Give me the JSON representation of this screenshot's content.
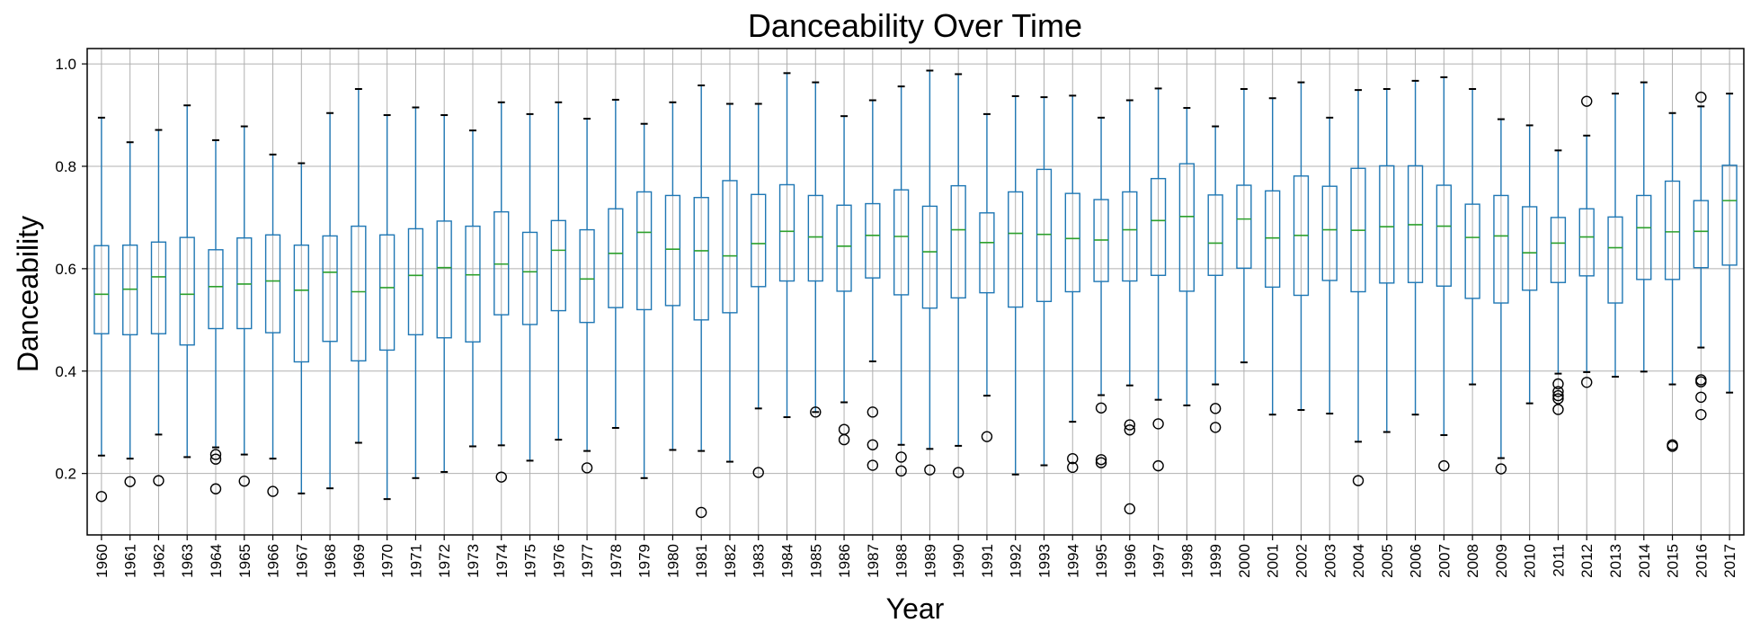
{
  "chart_data": {
    "type": "boxplot",
    "title": "Danceability Over Time",
    "xlabel": "Year",
    "ylabel": "Danceability",
    "ylim": [
      0.08,
      1.03
    ],
    "yticks": [
      0.2,
      0.4,
      0.6,
      0.8,
      1.0
    ],
    "ytick_labels": [
      "0.2",
      "0.4",
      "0.6",
      "0.8",
      "1.0"
    ],
    "grid": true,
    "legend": "none",
    "colors": {
      "box": "#1f77b4",
      "median": "#2ca02c",
      "grid": "#b0b0b0",
      "axis": "#000000",
      "flier": "#000000"
    },
    "categories": [
      "1960",
      "1961",
      "1962",
      "1963",
      "1964",
      "1965",
      "1966",
      "1967",
      "1968",
      "1969",
      "1970",
      "1971",
      "1972",
      "1973",
      "1974",
      "1975",
      "1976",
      "1977",
      "1978",
      "1979",
      "1980",
      "1981",
      "1982",
      "1983",
      "1984",
      "1985",
      "1986",
      "1987",
      "1988",
      "1989",
      "1990",
      "1991",
      "1992",
      "1993",
      "1994",
      "1995",
      "1996",
      "1997",
      "1998",
      "1999",
      "2000",
      "2001",
      "2002",
      "2003",
      "2004",
      "2005",
      "2006",
      "2007",
      "2008",
      "2009",
      "2010",
      "2011",
      "2012",
      "2013",
      "2014",
      "2015",
      "2016",
      "2017"
    ],
    "boxes": [
      {
        "whislo": 0.235,
        "q1": 0.473,
        "med": 0.55,
        "q3": 0.645,
        "whishi": 0.895,
        "fliers": [
          0.155
        ]
      },
      {
        "whislo": 0.229,
        "q1": 0.471,
        "med": 0.56,
        "q3": 0.646,
        "whishi": 0.847,
        "fliers": [
          0.184
        ]
      },
      {
        "whislo": 0.276,
        "q1": 0.473,
        "med": 0.584,
        "q3": 0.652,
        "whishi": 0.871,
        "fliers": [
          0.186
        ]
      },
      {
        "whislo": 0.232,
        "q1": 0.451,
        "med": 0.55,
        "q3": 0.661,
        "whishi": 0.919,
        "fliers": []
      },
      {
        "whislo": 0.251,
        "q1": 0.483,
        "med": 0.565,
        "q3": 0.637,
        "whishi": 0.851,
        "fliers": [
          0.237,
          0.228,
          0.17
        ]
      },
      {
        "whislo": 0.237,
        "q1": 0.483,
        "med": 0.57,
        "q3": 0.66,
        "whishi": 0.878,
        "fliers": [
          0.185
        ]
      },
      {
        "whislo": 0.229,
        "q1": 0.475,
        "med": 0.576,
        "q3": 0.666,
        "whishi": 0.823,
        "fliers": [
          0.165
        ]
      },
      {
        "whislo": 0.161,
        "q1": 0.418,
        "med": 0.558,
        "q3": 0.646,
        "whishi": 0.806,
        "fliers": []
      },
      {
        "whislo": 0.171,
        "q1": 0.458,
        "med": 0.593,
        "q3": 0.664,
        "whishi": 0.904,
        "fliers": []
      },
      {
        "whislo": 0.26,
        "q1": 0.42,
        "med": 0.555,
        "q3": 0.683,
        "whishi": 0.951,
        "fliers": []
      },
      {
        "whislo": 0.15,
        "q1": 0.441,
        "med": 0.563,
        "q3": 0.666,
        "whishi": 0.9,
        "fliers": []
      },
      {
        "whislo": 0.191,
        "q1": 0.471,
        "med": 0.587,
        "q3": 0.678,
        "whishi": 0.915,
        "fliers": []
      },
      {
        "whislo": 0.203,
        "q1": 0.465,
        "med": 0.602,
        "q3": 0.693,
        "whishi": 0.9,
        "fliers": []
      },
      {
        "whislo": 0.253,
        "q1": 0.457,
        "med": 0.588,
        "q3": 0.683,
        "whishi": 0.87,
        "fliers": []
      },
      {
        "whislo": 0.255,
        "q1": 0.51,
        "med": 0.609,
        "q3": 0.711,
        "whishi": 0.925,
        "fliers": [
          0.193
        ]
      },
      {
        "whislo": 0.225,
        "q1": 0.491,
        "med": 0.594,
        "q3": 0.671,
        "whishi": 0.902,
        "fliers": []
      },
      {
        "whislo": 0.266,
        "q1": 0.518,
        "med": 0.636,
        "q3": 0.694,
        "whishi": 0.925,
        "fliers": []
      },
      {
        "whislo": 0.244,
        "q1": 0.495,
        "med": 0.58,
        "q3": 0.676,
        "whishi": 0.893,
        "fliers": [
          0.211
        ]
      },
      {
        "whislo": 0.289,
        "q1": 0.524,
        "med": 0.63,
        "q3": 0.717,
        "whishi": 0.93,
        "fliers": []
      },
      {
        "whislo": 0.191,
        "q1": 0.52,
        "med": 0.671,
        "q3": 0.75,
        "whishi": 0.883,
        "fliers": []
      },
      {
        "whislo": 0.246,
        "q1": 0.528,
        "med": 0.638,
        "q3": 0.743,
        "whishi": 0.925,
        "fliers": []
      },
      {
        "whislo": 0.244,
        "q1": 0.5,
        "med": 0.635,
        "q3": 0.739,
        "whishi": 0.958,
        "fliers": [
          0.124
        ]
      },
      {
        "whislo": 0.223,
        "q1": 0.514,
        "med": 0.625,
        "q3": 0.772,
        "whishi": 0.922,
        "fliers": []
      },
      {
        "whislo": 0.327,
        "q1": 0.565,
        "med": 0.649,
        "q3": 0.745,
        "whishi": 0.922,
        "fliers": [
          0.202
        ]
      },
      {
        "whislo": 0.31,
        "q1": 0.576,
        "med": 0.673,
        "q3": 0.764,
        "whishi": 0.982,
        "fliers": []
      },
      {
        "whislo": 0.32,
        "q1": 0.576,
        "med": 0.662,
        "q3": 0.743,
        "whishi": 0.964,
        "fliers": [
          0.32
        ]
      },
      {
        "whislo": 0.339,
        "q1": 0.556,
        "med": 0.644,
        "q3": 0.724,
        "whishi": 0.898,
        "fliers": [
          0.286,
          0.266
        ]
      },
      {
        "whislo": 0.419,
        "q1": 0.582,
        "med": 0.665,
        "q3": 0.727,
        "whishi": 0.929,
        "fliers": [
          0.32,
          0.256,
          0.216
        ]
      },
      {
        "whislo": 0.256,
        "q1": 0.549,
        "med": 0.663,
        "q3": 0.754,
        "whishi": 0.956,
        "fliers": [
          0.232,
          0.205
        ]
      },
      {
        "whislo": 0.248,
        "q1": 0.523,
        "med": 0.633,
        "q3": 0.722,
        "whishi": 0.987,
        "fliers": [
          0.207
        ]
      },
      {
        "whislo": 0.254,
        "q1": 0.543,
        "med": 0.676,
        "q3": 0.762,
        "whishi": 0.98,
        "fliers": [
          0.202
        ]
      },
      {
        "whislo": 0.352,
        "q1": 0.553,
        "med": 0.651,
        "q3": 0.709,
        "whishi": 0.902,
        "fliers": [
          0.272
        ]
      },
      {
        "whislo": 0.198,
        "q1": 0.525,
        "med": 0.669,
        "q3": 0.75,
        "whishi": 0.937,
        "fliers": []
      },
      {
        "whislo": 0.216,
        "q1": 0.536,
        "med": 0.667,
        "q3": 0.794,
        "whishi": 0.935,
        "fliers": []
      },
      {
        "whislo": 0.301,
        "q1": 0.555,
        "med": 0.659,
        "q3": 0.747,
        "whishi": 0.938,
        "fliers": [
          0.229,
          0.212
        ]
      },
      {
        "whislo": 0.353,
        "q1": 0.575,
        "med": 0.656,
        "q3": 0.735,
        "whishi": 0.895,
        "fliers": [
          0.328,
          0.227,
          0.221
        ]
      },
      {
        "whislo": 0.372,
        "q1": 0.576,
        "med": 0.676,
        "q3": 0.75,
        "whishi": 0.929,
        "fliers": [
          0.295,
          0.285,
          0.131
        ]
      },
      {
        "whislo": 0.344,
        "q1": 0.587,
        "med": 0.694,
        "q3": 0.776,
        "whishi": 0.952,
        "fliers": [
          0.297,
          0.215
        ]
      },
      {
        "whislo": 0.333,
        "q1": 0.556,
        "med": 0.702,
        "q3": 0.805,
        "whishi": 0.914,
        "fliers": []
      },
      {
        "whislo": 0.374,
        "q1": 0.587,
        "med": 0.65,
        "q3": 0.744,
        "whishi": 0.878,
        "fliers": [
          0.327,
          0.29
        ]
      },
      {
        "whislo": 0.417,
        "q1": 0.601,
        "med": 0.697,
        "q3": 0.763,
        "whishi": 0.951,
        "fliers": []
      },
      {
        "whislo": 0.315,
        "q1": 0.564,
        "med": 0.66,
        "q3": 0.752,
        "whishi": 0.933,
        "fliers": []
      },
      {
        "whislo": 0.324,
        "q1": 0.548,
        "med": 0.665,
        "q3": 0.781,
        "whishi": 0.964,
        "fliers": []
      },
      {
        "whislo": 0.317,
        "q1": 0.577,
        "med": 0.676,
        "q3": 0.761,
        "whishi": 0.895,
        "fliers": []
      },
      {
        "whislo": 0.262,
        "q1": 0.555,
        "med": 0.675,
        "q3": 0.796,
        "whishi": 0.949,
        "fliers": [
          0.186
        ]
      },
      {
        "whislo": 0.281,
        "q1": 0.572,
        "med": 0.682,
        "q3": 0.801,
        "whishi": 0.951,
        "fliers": []
      },
      {
        "whislo": 0.315,
        "q1": 0.573,
        "med": 0.686,
        "q3": 0.801,
        "whishi": 0.967,
        "fliers": []
      },
      {
        "whislo": 0.275,
        "q1": 0.566,
        "med": 0.683,
        "q3": 0.763,
        "whishi": 0.974,
        "fliers": [
          0.215
        ]
      },
      {
        "whislo": 0.374,
        "q1": 0.542,
        "med": 0.661,
        "q3": 0.726,
        "whishi": 0.951,
        "fliers": []
      },
      {
        "whislo": 0.23,
        "q1": 0.533,
        "med": 0.664,
        "q3": 0.743,
        "whishi": 0.892,
        "fliers": [
          0.209
        ]
      },
      {
        "whislo": 0.337,
        "q1": 0.558,
        "med": 0.631,
        "q3": 0.721,
        "whishi": 0.88,
        "fliers": []
      },
      {
        "whislo": 0.395,
        "q1": 0.573,
        "med": 0.65,
        "q3": 0.7,
        "whishi": 0.831,
        "fliers": [
          0.375,
          0.36,
          0.352,
          0.346,
          0.325
        ]
      },
      {
        "whislo": 0.398,
        "q1": 0.586,
        "med": 0.662,
        "q3": 0.717,
        "whishi": 0.86,
        "fliers": [
          0.927,
          0.378
        ]
      },
      {
        "whislo": 0.389,
        "q1": 0.533,
        "med": 0.641,
        "q3": 0.701,
        "whishi": 0.942,
        "fliers": []
      },
      {
        "whislo": 0.399,
        "q1": 0.579,
        "med": 0.68,
        "q3": 0.743,
        "whishi": 0.964,
        "fliers": []
      },
      {
        "whislo": 0.374,
        "q1": 0.579,
        "med": 0.672,
        "q3": 0.771,
        "whishi": 0.904,
        "fliers": [
          0.256,
          0.253
        ]
      },
      {
        "whislo": 0.446,
        "q1": 0.602,
        "med": 0.673,
        "q3": 0.733,
        "whishi": 0.917,
        "fliers": [
          0.935,
          0.383,
          0.379,
          0.349,
          0.315
        ]
      },
      {
        "whislo": 0.358,
        "q1": 0.607,
        "med": 0.733,
        "q3": 0.802,
        "whishi": 0.942,
        "fliers": []
      }
    ]
  }
}
